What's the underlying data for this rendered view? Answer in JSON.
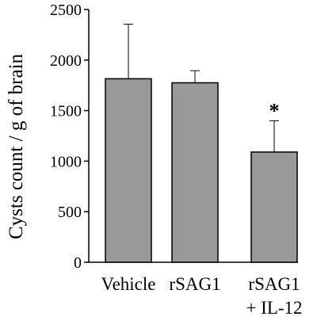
{
  "chart_data": {
    "type": "bar",
    "ylabel": "Cysts count / g of brain",
    "ylim": [
      0,
      2500
    ],
    "yticks": [
      0,
      500,
      1000,
      1500,
      2000,
      2500
    ],
    "categories": [
      {
        "lines": [
          "Vehicle"
        ]
      },
      {
        "lines": [
          "rSAG1"
        ]
      },
      {
        "lines": [
          "rSAG1",
          "+ IL-12"
        ]
      }
    ],
    "values": [
      1815,
      1775,
      1090
    ],
    "error_upper": [
      540,
      120,
      310
    ],
    "annotations": [
      "",
      "",
      "*"
    ],
    "bar_color": "#999999",
    "grid": false
  }
}
